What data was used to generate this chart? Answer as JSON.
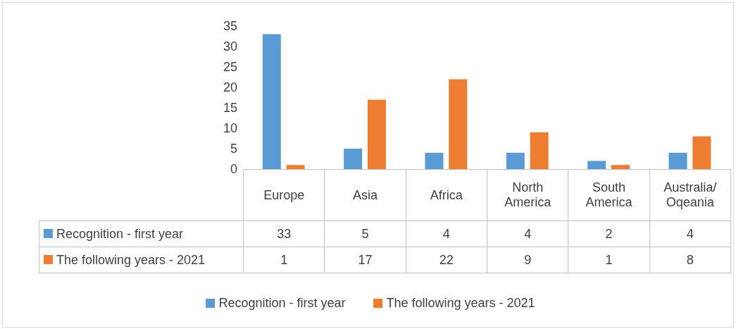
{
  "chart_data": {
    "type": "bar",
    "categories": [
      "Europe",
      "Asia",
      "Africa",
      "North America",
      "South America",
      "Australia/ Oqeania"
    ],
    "series": [
      {
        "name": "Recognition - first year",
        "color": "#5b9bd5",
        "values": [
          33,
          5,
          4,
          4,
          2,
          4
        ]
      },
      {
        "name": "The following years - 2021",
        "color": "#ed7d31",
        "values": [
          1,
          17,
          22,
          9,
          1,
          8
        ]
      }
    ],
    "ylim": [
      0,
      35
    ],
    "yticks": [
      0,
      5,
      10,
      15,
      20,
      25,
      30,
      35
    ],
    "grid": false,
    "legend": "bottom",
    "data_labels": true
  }
}
